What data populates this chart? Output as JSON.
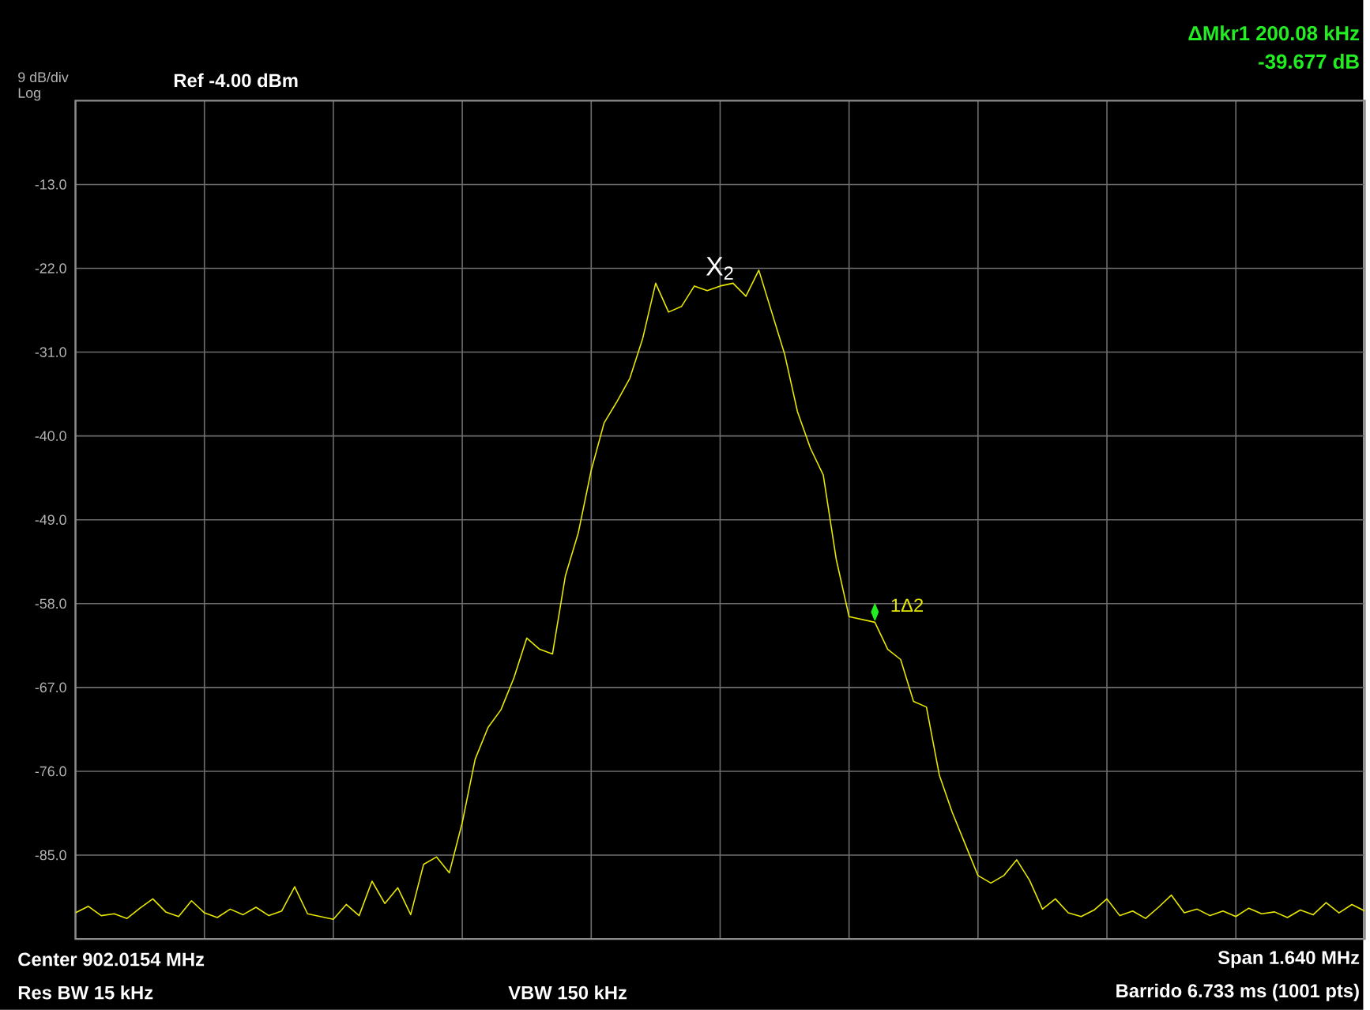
{
  "chart_data": {
    "type": "line",
    "categories": [
      null,
      null,
      null,
      null,
      null,
      null,
      null,
      null,
      null,
      null,
      null,
      null,
      null,
      null,
      null,
      null,
      null,
      null,
      null,
      null,
      null,
      null,
      null,
      null,
      null,
      null,
      null,
      null,
      null,
      null,
      null,
      null,
      null,
      null,
      null,
      null,
      null,
      null,
      null,
      null,
      null,
      null,
      null,
      null,
      null,
      null,
      null,
      null,
      null,
      null,
      null,
      null,
      null,
      null,
      null,
      null,
      null,
      null,
      null,
      null,
      null,
      null,
      null,
      null,
      null,
      null,
      null,
      null,
      null,
      null,
      null,
      null,
      null,
      null,
      null,
      null,
      null,
      null,
      null,
      null,
      null,
      null,
      null,
      null,
      null,
      null,
      null,
      null,
      null,
      null,
      null,
      null,
      null,
      null,
      null,
      null,
      null,
      null,
      null,
      null,
      null
    ],
    "series": [
      {
        "type": "scatter",
        "marker": "diamond",
        "color": "#22ee22",
        "values": [
          null,
          null,
          null,
          null,
          null,
          null,
          null,
          null,
          null,
          null,
          null,
          null,
          null,
          null,
          null,
          null,
          null,
          null,
          null,
          null,
          null,
          null,
          null,
          null,
          null,
          null,
          null,
          null,
          null,
          null,
          null,
          null,
          null,
          null,
          null,
          null,
          null,
          null,
          null,
          null,
          null,
          null,
          null,
          null,
          null,
          null,
          null,
          null,
          null,
          null,
          null,
          null,
          null,
          null,
          null,
          null,
          null,
          null,
          null,
          null,
          null,
          null,
          -58.9,
          null,
          null,
          null,
          null,
          null,
          null,
          null,
          null,
          null,
          null,
          null,
          null,
          null,
          null,
          null,
          null,
          null,
          null,
          null,
          null,
          null,
          null,
          null,
          null,
          null,
          null,
          null,
          null,
          null,
          null,
          null,
          null,
          null,
          null,
          null,
          null,
          null,
          null
        ]
      },
      {
        "color": "#e8e800",
        "values": [
          -91.2,
          -90.5,
          -91.5,
          -91.3,
          -91.8,
          -90.7,
          -89.7,
          -91.1,
          -91.6,
          -89.9,
          -91.2,
          -91.7,
          -90.8,
          -91.4,
          -90.6,
          -91.5,
          -91.0,
          -88.4,
          -91.3,
          -91.6,
          -91.9,
          -90.3,
          -91.5,
          -87.8,
          -90.2,
          -88.5,
          -91.4,
          -86.0,
          -85.2,
          -86.9,
          -81.5,
          -74.7,
          -71.3,
          -69.4,
          -66.0,
          -61.7,
          -62.9,
          -63.4,
          -55.0,
          -50.4,
          -43.7,
          -38.6,
          -36.3,
          -33.8,
          -29.5,
          -23.6,
          -26.7,
          -26.1,
          -23.9,
          -24.4,
          -23.9,
          -23.6,
          -25.0,
          -22.2,
          -26.7,
          -31.2,
          -37.4,
          -41.3,
          -44.2,
          -53.2,
          -59.4,
          -59.7,
          -60.0,
          -62.9,
          -64.0,
          -68.5,
          -69.1,
          -76.4,
          -80.4,
          -83.8,
          -87.2,
          -88.0,
          -87.2,
          -85.5,
          -87.7,
          -90.8,
          -89.7,
          -91.2,
          -91.6,
          -90.9,
          -89.7,
          -91.5,
          -91.0,
          -91.8,
          -90.6,
          -89.3,
          -91.2,
          -90.8,
          -91.5,
          -91.0,
          -91.6,
          -90.7,
          -91.3,
          -91.1,
          -91.7,
          -90.9,
          -91.4,
          -90.1,
          -91.2,
          -90.3,
          -91.0
        ]
      }
    ],
    "ylim": [
      -94,
      -4
    ],
    "yticks": [
      {
        "value": -13,
        "label": "-13.0"
      },
      {
        "value": -22,
        "label": "-22.0"
      },
      {
        "value": -31,
        "label": "-31.0"
      },
      {
        "value": -40,
        "label": "-40.0"
      },
      {
        "value": -49,
        "label": "-49.0"
      },
      {
        "value": -58,
        "label": "-58.0"
      },
      {
        "value": -67,
        "label": "-67.0"
      },
      {
        "value": -76,
        "label": "-76.0"
      },
      {
        "value": -85,
        "label": "-85.0"
      }
    ],
    "grid": true,
    "tick_labels": "y",
    "annotations": [
      "9 dB/div",
      "Log",
      "Ref -4.00 dBm",
      "ΔMkr1 200.08 kHz",
      "-39.677 dB",
      "Center 902.0154 MHz",
      "Span 1.640 MHz",
      "Res BW 15 kHz",
      "VBW 150 kHz",
      "Barrido 6.733 ms (1001 pts)",
      "X$_{2}$",
      "1Δ2"
    ]
  }
}
